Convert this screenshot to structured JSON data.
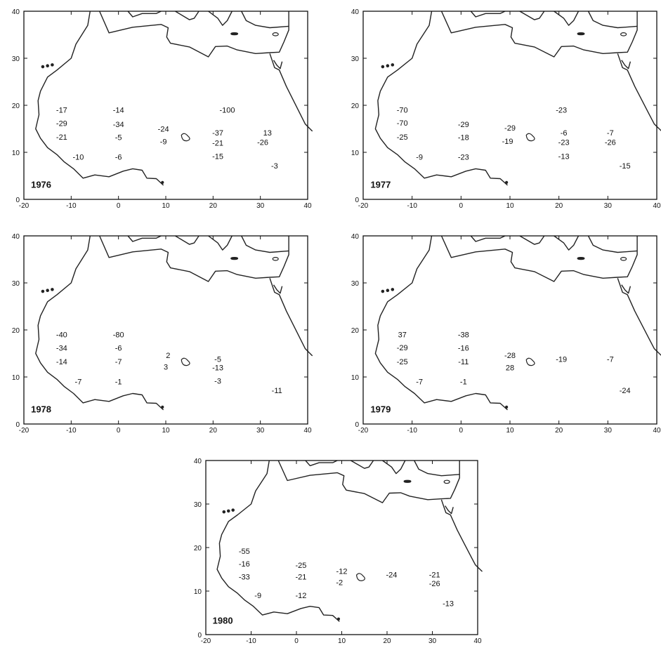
{
  "axis": {
    "x_ticks": [
      "-20",
      "-10",
      "0",
      "10",
      "20",
      "30",
      "40"
    ],
    "y_ticks": [
      "0",
      "10",
      "20",
      "30",
      "40"
    ]
  },
  "maps": [
    {
      "year": "1976",
      "values": [
        {
          "text": "-17",
          "lon": -12,
          "lat": 19
        },
        {
          "text": "-29",
          "lon": -12,
          "lat": 16.2
        },
        {
          "text": "-21",
          "lon": -12,
          "lat": 13.3
        },
        {
          "text": "-10",
          "lon": -8.5,
          "lat": 9
        },
        {
          "text": "-14",
          "lon": 0,
          "lat": 19
        },
        {
          "text": "-34",
          "lon": 0,
          "lat": 16
        },
        {
          "text": "-5",
          "lon": 0,
          "lat": 13.2
        },
        {
          "text": "-6",
          "lon": 0,
          "lat": 9
        },
        {
          "text": "-24",
          "lon": 9.5,
          "lat": 15
        },
        {
          "text": "-9",
          "lon": 9.5,
          "lat": 12.3
        },
        {
          "text": "-100",
          "lon": 23,
          "lat": 19
        },
        {
          "text": "-37",
          "lon": 21,
          "lat": 14.2
        },
        {
          "text": "-21",
          "lon": 21,
          "lat": 12
        },
        {
          "text": "-15",
          "lon": 21,
          "lat": 9.2
        },
        {
          "text": "13",
          "lon": 31.5,
          "lat": 14.2
        },
        {
          "text": "-26",
          "lon": 30.5,
          "lat": 12.2
        },
        {
          "text": "-3",
          "lon": 33,
          "lat": 7.2
        }
      ]
    },
    {
      "year": "1977",
      "values": [
        {
          "text": "-70",
          "lon": -12,
          "lat": 19
        },
        {
          "text": "-70",
          "lon": -12,
          "lat": 16.3
        },
        {
          "text": "-25",
          "lon": -12,
          "lat": 13.3
        },
        {
          "text": "-9",
          "lon": -8.5,
          "lat": 9
        },
        {
          "text": "-29",
          "lon": 0.5,
          "lat": 16
        },
        {
          "text": "-18",
          "lon": 0.5,
          "lat": 13.2
        },
        {
          "text": "-23",
          "lon": 0.5,
          "lat": 9
        },
        {
          "text": "-29",
          "lon": 10,
          "lat": 15.2
        },
        {
          "text": "-19",
          "lon": 9.5,
          "lat": 12.4
        },
        {
          "text": "-23",
          "lon": 20.5,
          "lat": 19
        },
        {
          "text": "-6",
          "lon": 21,
          "lat": 14.2
        },
        {
          "text": "-23",
          "lon": 21,
          "lat": 12.2
        },
        {
          "text": "-13",
          "lon": 21,
          "lat": 9.2
        },
        {
          "text": "-7",
          "lon": 30.5,
          "lat": 14.2
        },
        {
          "text": "-26",
          "lon": 30.5,
          "lat": 12.2
        },
        {
          "text": "-15",
          "lon": 33.5,
          "lat": 7.2
        }
      ]
    },
    {
      "year": "1978",
      "values": [
        {
          "text": "-40",
          "lon": -12,
          "lat": 19
        },
        {
          "text": "-34",
          "lon": -12,
          "lat": 16.2
        },
        {
          "text": "-14",
          "lon": -12,
          "lat": 13.3
        },
        {
          "text": "-7",
          "lon": -8.5,
          "lat": 9
        },
        {
          "text": "-80",
          "lon": 0,
          "lat": 19
        },
        {
          "text": "-6",
          "lon": 0,
          "lat": 16.2
        },
        {
          "text": "-7",
          "lon": 0,
          "lat": 13.3
        },
        {
          "text": "-1",
          "lon": 0,
          "lat": 9
        },
        {
          "text": "2",
          "lon": 10.5,
          "lat": 14.6
        },
        {
          "text": "3",
          "lon": 10,
          "lat": 12.2
        },
        {
          "text": "-5",
          "lon": 21,
          "lat": 13.8
        },
        {
          "text": "-13",
          "lon": 21,
          "lat": 12
        },
        {
          "text": "-3",
          "lon": 21,
          "lat": 9.2
        },
        {
          "text": "-11",
          "lon": 33.5,
          "lat": 7.2
        }
      ]
    },
    {
      "year": "1979",
      "values": [
        {
          "text": "37",
          "lon": -12,
          "lat": 19
        },
        {
          "text": "-29",
          "lon": -12,
          "lat": 16.3
        },
        {
          "text": "-25",
          "lon": -12,
          "lat": 13.3
        },
        {
          "text": "-7",
          "lon": -8.5,
          "lat": 9
        },
        {
          "text": "-38",
          "lon": 0.5,
          "lat": 19
        },
        {
          "text": "-16",
          "lon": 0.5,
          "lat": 16.2
        },
        {
          "text": "-11",
          "lon": 0.5,
          "lat": 13.3
        },
        {
          "text": "-1",
          "lon": 0.5,
          "lat": 9
        },
        {
          "text": "-28",
          "lon": 10,
          "lat": 14.6
        },
        {
          "text": "28",
          "lon": 10,
          "lat": 12
        },
        {
          "text": "-19",
          "lon": 20.5,
          "lat": 13.8
        },
        {
          "text": "-7",
          "lon": 30.5,
          "lat": 13.8
        },
        {
          "text": "-24",
          "lon": 33.5,
          "lat": 7.2
        }
      ]
    },
    {
      "year": "1980",
      "values": [
        {
          "text": "-55",
          "lon": -11.5,
          "lat": 19.2
        },
        {
          "text": "-16",
          "lon": -11.5,
          "lat": 16.3
        },
        {
          "text": "-33",
          "lon": -11.5,
          "lat": 13.3
        },
        {
          "text": "-9",
          "lon": -8.5,
          "lat": 9
        },
        {
          "text": "-25",
          "lon": 1,
          "lat": 16
        },
        {
          "text": "-21",
          "lon": 1,
          "lat": 13.3
        },
        {
          "text": "-12",
          "lon": 1,
          "lat": 9
        },
        {
          "text": "-12",
          "lon": 10,
          "lat": 14.6
        },
        {
          "text": "-2",
          "lon": 9.5,
          "lat": 12
        },
        {
          "text": "-24",
          "lon": 21,
          "lat": 13.8
        },
        {
          "text": "-21",
          "lon": 30.5,
          "lat": 13.8
        },
        {
          "text": "-26",
          "lon": 30.5,
          "lat": 11.8
        },
        {
          "text": "-13",
          "lon": 33.5,
          "lat": 7.2
        }
      ]
    }
  ]
}
